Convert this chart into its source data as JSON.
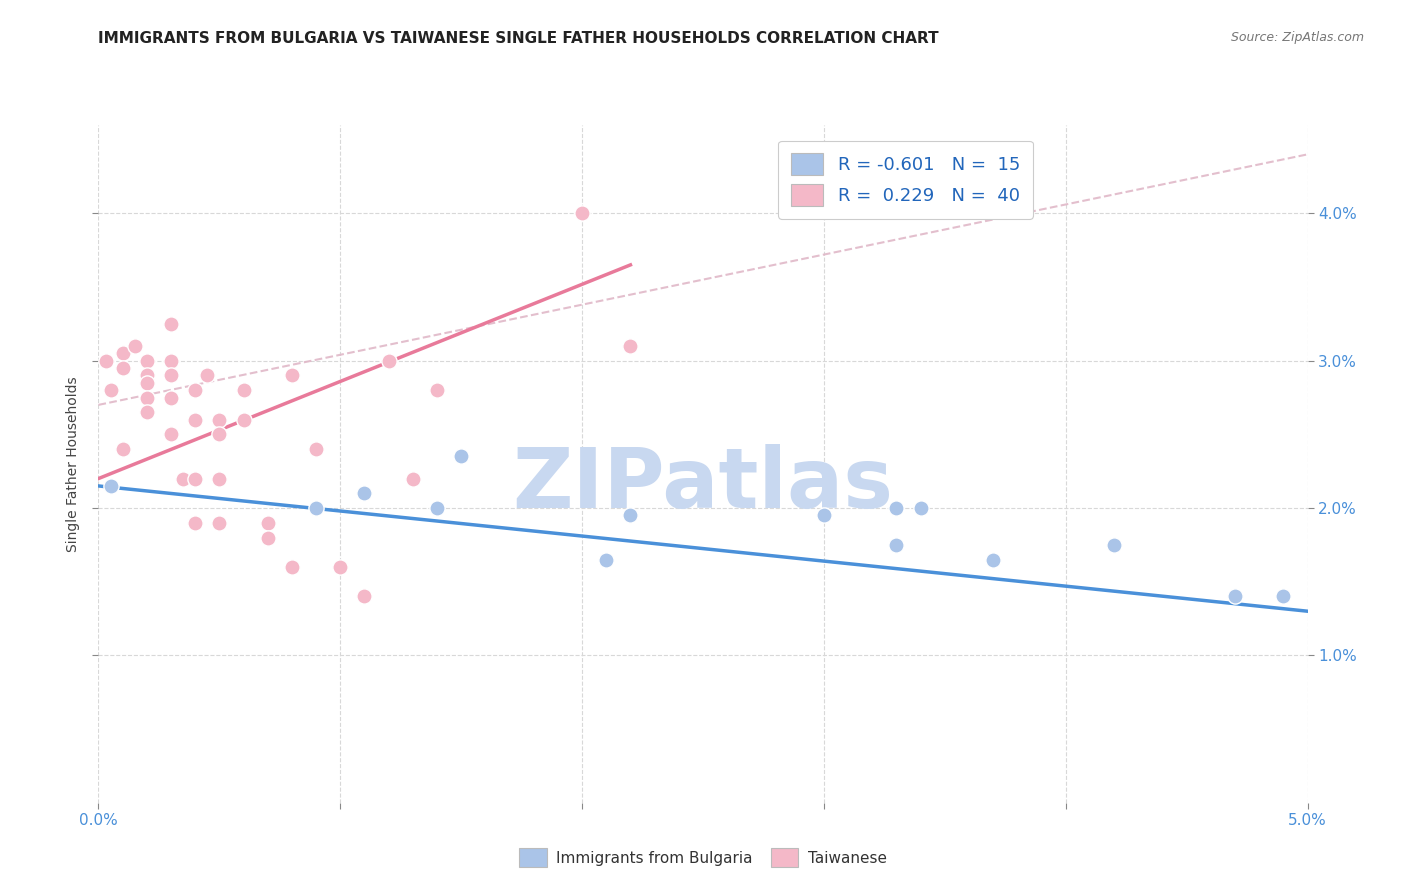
{
  "title": "IMMIGRANTS FROM BULGARIA VS TAIWANESE SINGLE FATHER HOUSEHOLDS CORRELATION CHART",
  "source": "Source: ZipAtlas.com",
  "ylabel": "Single Father Households",
  "ylabel_right_ticks": [
    "1.0%",
    "2.0%",
    "3.0%",
    "4.0%"
  ],
  "ylabel_right_vals": [
    0.01,
    0.02,
    0.03,
    0.04
  ],
  "xlim": [
    0.0,
    0.05
  ],
  "ylim": [
    0.0,
    0.046
  ],
  "legend_label1": "R = -0.601   N =  15",
  "legend_label2": "R =  0.229   N =  40",
  "legend_color1": "#aac4e8",
  "legend_color2": "#f4b8c8",
  "watermark": "ZIPatlas",
  "blue_scatter_x": [
    0.0005,
    0.009,
    0.011,
    0.014,
    0.015,
    0.021,
    0.022,
    0.03,
    0.033,
    0.033,
    0.034,
    0.037,
    0.042,
    0.047,
    0.049
  ],
  "blue_scatter_y": [
    0.0215,
    0.02,
    0.021,
    0.02,
    0.0235,
    0.0165,
    0.0195,
    0.0195,
    0.0175,
    0.02,
    0.02,
    0.0165,
    0.0175,
    0.014,
    0.014
  ],
  "pink_scatter_x": [
    0.0003,
    0.0005,
    0.001,
    0.001,
    0.001,
    0.0015,
    0.002,
    0.002,
    0.002,
    0.002,
    0.002,
    0.003,
    0.003,
    0.003,
    0.003,
    0.003,
    0.0035,
    0.004,
    0.004,
    0.004,
    0.004,
    0.0045,
    0.005,
    0.005,
    0.005,
    0.005,
    0.006,
    0.006,
    0.007,
    0.007,
    0.008,
    0.008,
    0.009,
    0.01,
    0.011,
    0.012,
    0.013,
    0.014,
    0.02,
    0.022
  ],
  "pink_scatter_y": [
    0.03,
    0.028,
    0.024,
    0.0305,
    0.0295,
    0.031,
    0.03,
    0.029,
    0.0285,
    0.0275,
    0.0265,
    0.0325,
    0.03,
    0.029,
    0.0275,
    0.025,
    0.022,
    0.028,
    0.026,
    0.022,
    0.019,
    0.029,
    0.026,
    0.025,
    0.022,
    0.019,
    0.028,
    0.026,
    0.019,
    0.018,
    0.029,
    0.016,
    0.024,
    0.016,
    0.014,
    0.03,
    0.022,
    0.028,
    0.04,
    0.031
  ],
  "blue_line_x": [
    0.0,
    0.05
  ],
  "blue_line_y": [
    0.0215,
    0.013
  ],
  "pink_line_x": [
    0.0,
    0.022
  ],
  "pink_line_y": [
    0.022,
    0.0365
  ],
  "dashed_line_x": [
    0.0,
    0.05
  ],
  "dashed_line_y": [
    0.027,
    0.044
  ],
  "scatter_size": 120,
  "blue_scatter_color": "#aac4e8",
  "pink_scatter_color": "#f4b8c8",
  "blue_line_color": "#4a90d9",
  "pink_line_color": "#e87a9a",
  "dashed_line_color": "#e0b8c8",
  "grid_color": "#d8d8d8",
  "title_fontsize": 11,
  "source_fontsize": 9,
  "watermark_color": "#c8d8f0",
  "watermark_fontsize": 60
}
